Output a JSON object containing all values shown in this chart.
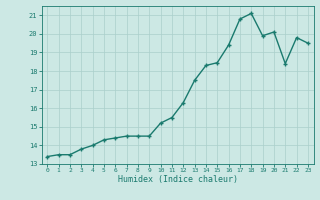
{
  "x_plot": [
    0,
    1,
    2,
    3,
    4,
    5,
    6,
    7,
    8,
    9,
    10,
    11,
    12,
    13,
    14,
    15,
    16,
    17,
    18,
    19,
    20,
    21,
    22,
    23
  ],
  "y_plot": [
    13.4,
    13.5,
    13.5,
    13.8,
    14.0,
    14.3,
    14.4,
    14.5,
    14.5,
    14.5,
    15.2,
    15.5,
    16.3,
    17.5,
    18.3,
    18.45,
    19.4,
    20.8,
    21.1,
    19.9,
    20.1,
    18.4,
    19.8,
    19.5
  ],
  "title": "",
  "xlabel": "Humidex (Indice chaleur)",
  "ylabel": "",
  "xlim": [
    -0.5,
    23.5
  ],
  "ylim": [
    13,
    21.5
  ],
  "yticks": [
    13,
    14,
    15,
    16,
    17,
    18,
    19,
    20,
    21
  ],
  "xticks": [
    0,
    1,
    2,
    3,
    4,
    5,
    6,
    7,
    8,
    9,
    10,
    11,
    12,
    13,
    14,
    15,
    16,
    17,
    18,
    19,
    20,
    21,
    22,
    23
  ],
  "line_color": "#1a7a6e",
  "bg_color": "#cce8e4",
  "grid_color": "#aacfcb",
  "marker": "+",
  "markersize": 3,
  "markeredgewidth": 1.0,
  "linewidth": 1.0
}
